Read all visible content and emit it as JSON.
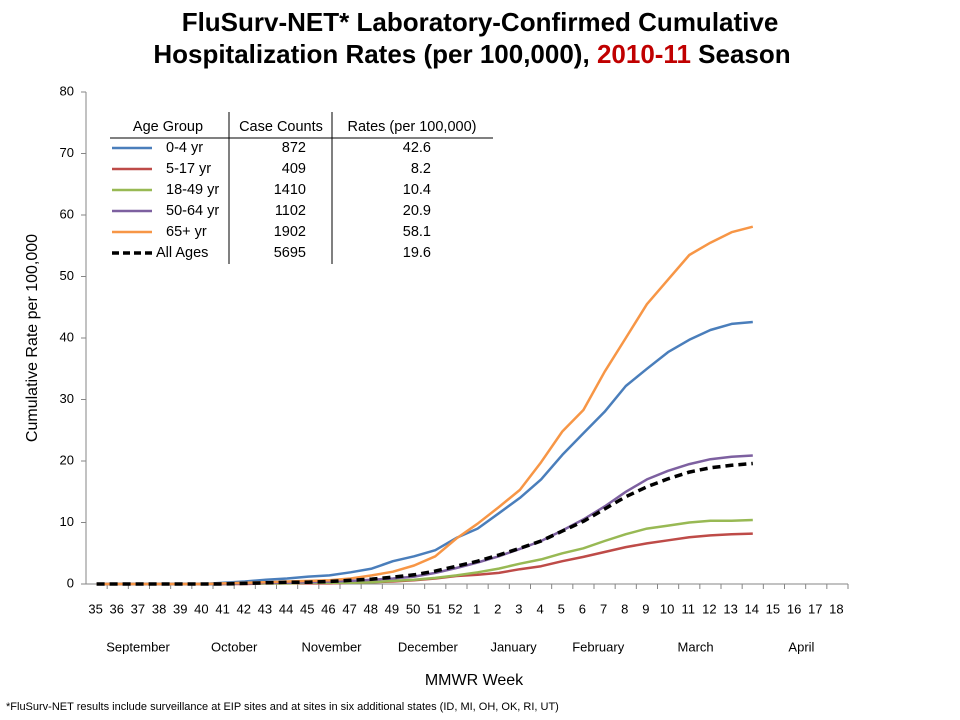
{
  "chart_data": {
    "type": "line",
    "title": "FluSurv-NET* Laboratory-Confirmed Cumulative",
    "title_line2": "Hospitalization Rates (per 100,000),",
    "title_season": "2010-11",
    "title_season_color": "#c00000",
    "title_end": "Season",
    "xlabel": "MMWR Week",
    "ylabel": "Cumulative Rate per 100,000",
    "footnote": "*FluSurv-NET results include surveillance at EIP sites and at sites in six additional states (ID, MI, OH, OK, RI, UT)",
    "categories": [
      "35",
      "36",
      "37",
      "38",
      "39",
      "40",
      "41",
      "42",
      "43",
      "44",
      "45",
      "46",
      "47",
      "48",
      "49",
      "50",
      "51",
      "52",
      "1",
      "2",
      "3",
      "4",
      "5",
      "6",
      "7",
      "8",
      "9",
      "10",
      "11",
      "12",
      "13",
      "14",
      "15",
      "16",
      "17",
      "18"
    ],
    "months": [
      "September",
      "October",
      "November",
      "December",
      "January",
      "February",
      "March",
      "April"
    ],
    "ylim": [
      0,
      80
    ],
    "yticks": [
      0,
      10,
      20,
      30,
      40,
      50,
      60,
      70,
      80
    ],
    "grid": false,
    "legend_table": {
      "headers": [
        "Age Group",
        "Case Counts",
        "Rates (per 100,000)"
      ],
      "case_counts": [
        872,
        409,
        1410,
        1102,
        1902,
        5695
      ],
      "rates": [
        42.6,
        8.2,
        10.4,
        20.9,
        58.1,
        19.6
      ]
    },
    "series": [
      {
        "name": "0-4 yr",
        "color": "#4a7ebb",
        "values": [
          0,
          0,
          0,
          0,
          0,
          0,
          0.2,
          0.4,
          0.7,
          0.9,
          1.2,
          1.4,
          1.9,
          2.5,
          3.7,
          4.5,
          5.5,
          7.5,
          9.0,
          11.5,
          14,
          17,
          21,
          24.5,
          28,
          32.2,
          35,
          37.7,
          39.7,
          41.3,
          42.3,
          42.6,
          null,
          null,
          null,
          null
        ]
      },
      {
        "name": "5-17 yr",
        "color": "#be4b48",
        "values": [
          0,
          0,
          0,
          0,
          0,
          0,
          0,
          0,
          0.1,
          0.1,
          0.1,
          0.1,
          0.2,
          0.3,
          0.4,
          0.6,
          0.9,
          1.3,
          1.5,
          1.8,
          2.4,
          2.9,
          3.7,
          4.4,
          5.2,
          6.0,
          6.6,
          7.1,
          7.6,
          7.9,
          8.1,
          8.2,
          null,
          null,
          null,
          null
        ]
      },
      {
        "name": "18-49 yr",
        "color": "#98b954",
        "values": [
          0,
          0,
          0,
          0,
          0,
          0,
          0,
          0.1,
          0.1,
          0.1,
          0.2,
          0.2,
          0.2,
          0.3,
          0.5,
          0.7,
          1.0,
          1.4,
          1.9,
          2.5,
          3.3,
          4.0,
          5.0,
          5.8,
          7.0,
          8.1,
          9.0,
          9.5,
          10.0,
          10.3,
          10.3,
          10.4,
          null,
          null,
          null,
          null
        ]
      },
      {
        "name": "50-64 yr",
        "color": "#7d60a0",
        "values": [
          0,
          0,
          0,
          0,
          0,
          0,
          0,
          0.1,
          0.2,
          0.2,
          0.3,
          0.4,
          0.5,
          0.7,
          0.9,
          1.2,
          1.8,
          2.6,
          3.5,
          4.5,
          5.7,
          7.0,
          8.7,
          10.5,
          12.6,
          15,
          17,
          18.4,
          19.5,
          20.3,
          20.7,
          20.9,
          null,
          null,
          null,
          null
        ]
      },
      {
        "name": "65+ yr",
        "color": "#f79646",
        "values": [
          0,
          0,
          0,
          0,
          0,
          0,
          0.1,
          0.2,
          0.3,
          0.4,
          0.5,
          0.6,
          0.9,
          1.4,
          2.0,
          3.0,
          4.5,
          7.4,
          9.8,
          12.5,
          15.3,
          19.8,
          24.8,
          28.3,
          34.5,
          40,
          45.5,
          49.5,
          53.5,
          55.5,
          57.2,
          58.1,
          null,
          null,
          null,
          null
        ]
      },
      {
        "name": "All Ages",
        "color": "#000000",
        "dashed": true,
        "values": [
          0,
          0,
          0,
          0,
          0,
          0,
          0,
          0.1,
          0.2,
          0.3,
          0.3,
          0.4,
          0.6,
          0.8,
          1.1,
          1.5,
          2.1,
          2.9,
          3.7,
          4.7,
          5.8,
          7.0,
          8.6,
          10.2,
          12.2,
          14.2,
          15.8,
          17.1,
          18.2,
          18.9,
          19.3,
          19.6,
          null,
          null,
          null,
          null
        ]
      }
    ]
  }
}
